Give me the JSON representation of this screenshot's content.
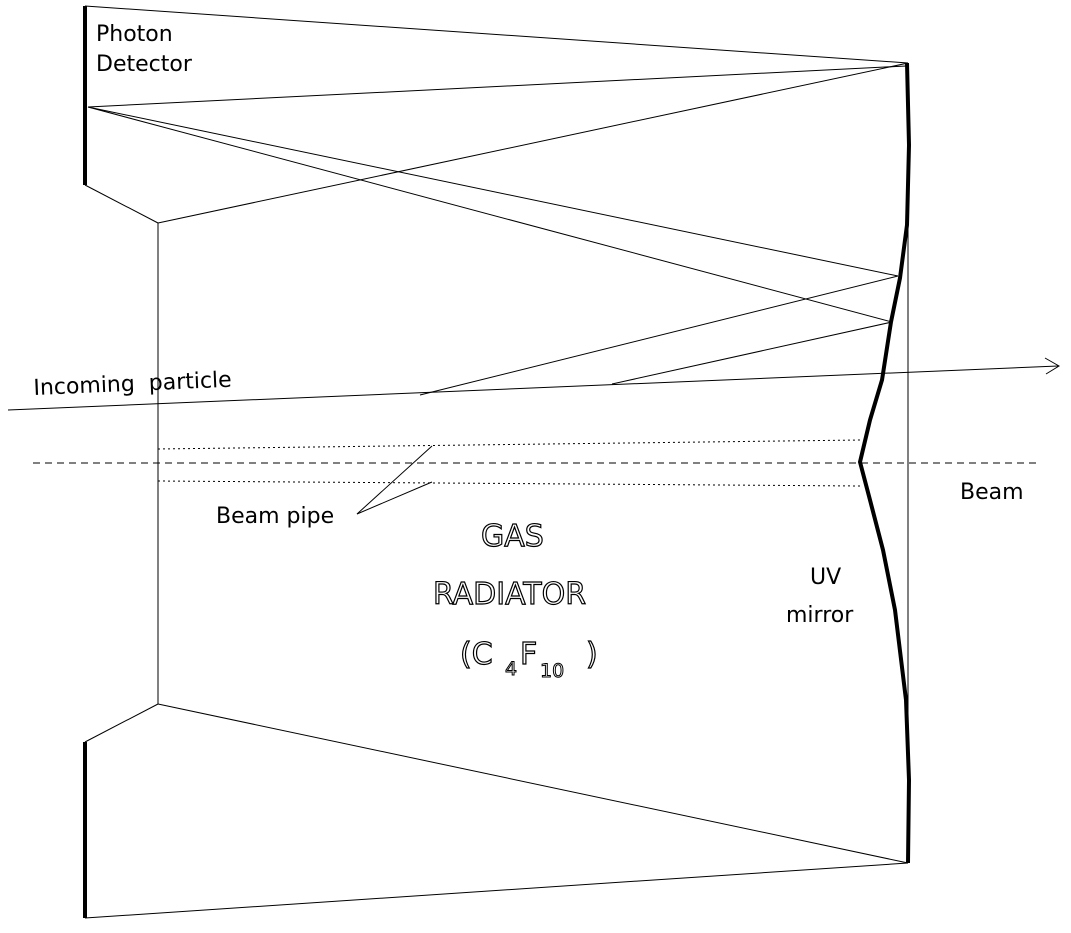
{
  "labels": {
    "photon_detector_line1": "Photon",
    "photon_detector_line2": "Detector",
    "incoming_particle": "Incoming  particle",
    "beam_pipe": "Beam pipe",
    "beam": "Beam",
    "gas": "GAS",
    "radiator": "RADIATOR",
    "formula_open": "(C",
    "formula_sub1": "4",
    "formula_f": "F",
    "formula_sub2": "10",
    "formula_close": ")",
    "uv": "UV",
    "mirror": "mirror"
  },
  "colors": {
    "ink": "#000000",
    "background": "#ffffff"
  },
  "icons": {
    "particle_arrow": "arrow-head-icon"
  }
}
